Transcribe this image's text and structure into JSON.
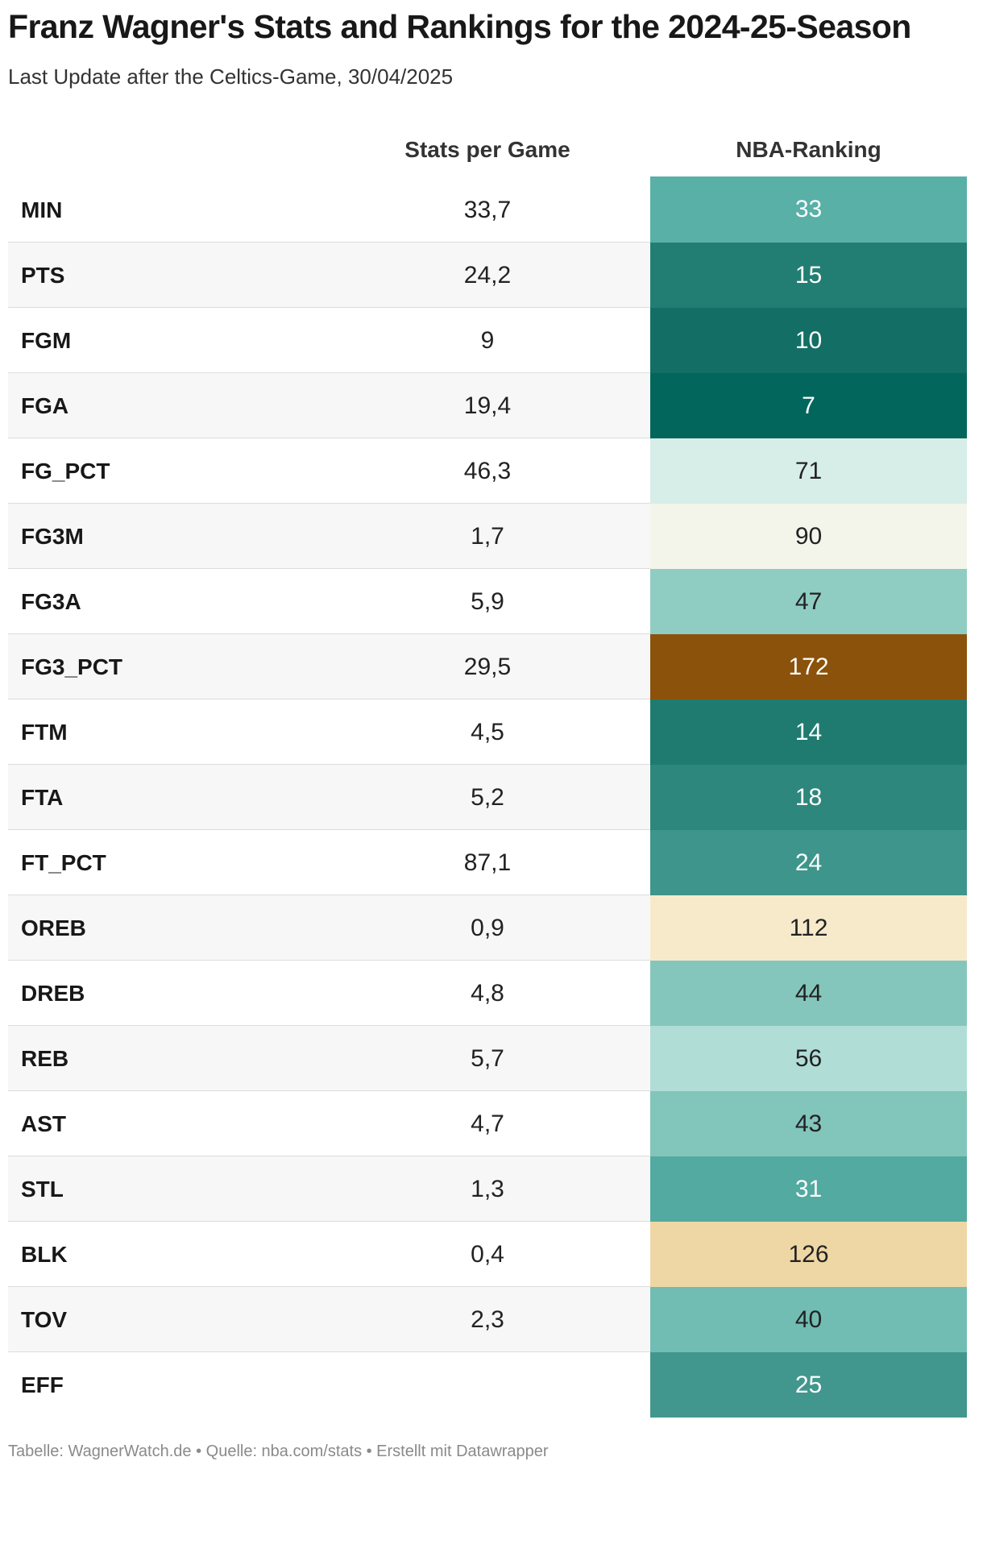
{
  "header": {
    "title": "Franz Wagner's Stats and Rankings for the 2024-25-Season",
    "subtitle": "Last Update after the Celtics-Game, 30/04/2025"
  },
  "chart_data": {
    "type": "table",
    "columns": [
      "",
      "Stats per Game",
      "NBA-Ranking"
    ],
    "rows": [
      {
        "label": "MIN",
        "stat": "33,7",
        "rank": 33,
        "color": "#58b0a7",
        "text_color": "#ffffff"
      },
      {
        "label": "PTS",
        "stat": "24,2",
        "rank": 15,
        "color": "#227e73",
        "text_color": "#ffffff"
      },
      {
        "label": "FGM",
        "stat": "9",
        "rank": 10,
        "color": "#136f65",
        "text_color": "#ffffff"
      },
      {
        "label": "FGA",
        "stat": "19,4",
        "rank": 7,
        "color": "#02665c",
        "text_color": "#ffffff"
      },
      {
        "label": "FG_PCT",
        "stat": "46,3",
        "rank": 71,
        "color": "#d7ede8",
        "text_color": "#222222"
      },
      {
        "label": "FG3M",
        "stat": "1,7",
        "rank": 90,
        "color": "#f4f5ea",
        "text_color": "#222222"
      },
      {
        "label": "FG3A",
        "stat": "5,9",
        "rank": 47,
        "color": "#8fcdc3",
        "text_color": "#222222"
      },
      {
        "label": "FG3_PCT",
        "stat": "29,5",
        "rank": 172,
        "color": "#8b520b",
        "text_color": "#ffffff"
      },
      {
        "label": "FTM",
        "stat": "4,5",
        "rank": 14,
        "color": "#1f7b70",
        "text_color": "#ffffff"
      },
      {
        "label": "FTA",
        "stat": "5,2",
        "rank": 18,
        "color": "#2e877c",
        "text_color": "#ffffff"
      },
      {
        "label": "FT_PCT",
        "stat": "87,1",
        "rank": 24,
        "color": "#3e958b",
        "text_color": "#ffffff"
      },
      {
        "label": "OREB",
        "stat": "0,9",
        "rank": 112,
        "color": "#f6eacb",
        "text_color": "#222222"
      },
      {
        "label": "DREB",
        "stat": "4,8",
        "rank": 44,
        "color": "#85c6bc",
        "text_color": "#222222"
      },
      {
        "label": "REB",
        "stat": "5,7",
        "rank": 56,
        "color": "#b1ddd7",
        "text_color": "#222222"
      },
      {
        "label": "AST",
        "stat": "4,7",
        "rank": 43,
        "color": "#82c5bb",
        "text_color": "#222222"
      },
      {
        "label": "STL",
        "stat": "1,3",
        "rank": 31,
        "color": "#52aaa0",
        "text_color": "#ffffff"
      },
      {
        "label": "BLK",
        "stat": "0,4",
        "rank": 126,
        "color": "#eed7a4",
        "text_color": "#222222"
      },
      {
        "label": "TOV",
        "stat": "2,3",
        "rank": 40,
        "color": "#71bdb3",
        "text_color": "#222222"
      },
      {
        "label": "EFF",
        "stat": "",
        "rank": 25,
        "color": "#41978d",
        "text_color": "#ffffff"
      }
    ]
  },
  "footer": {
    "credit": "Tabelle: WagnerWatch.de • Quelle: nba.com/stats • Erstellt mit Datawrapper"
  }
}
